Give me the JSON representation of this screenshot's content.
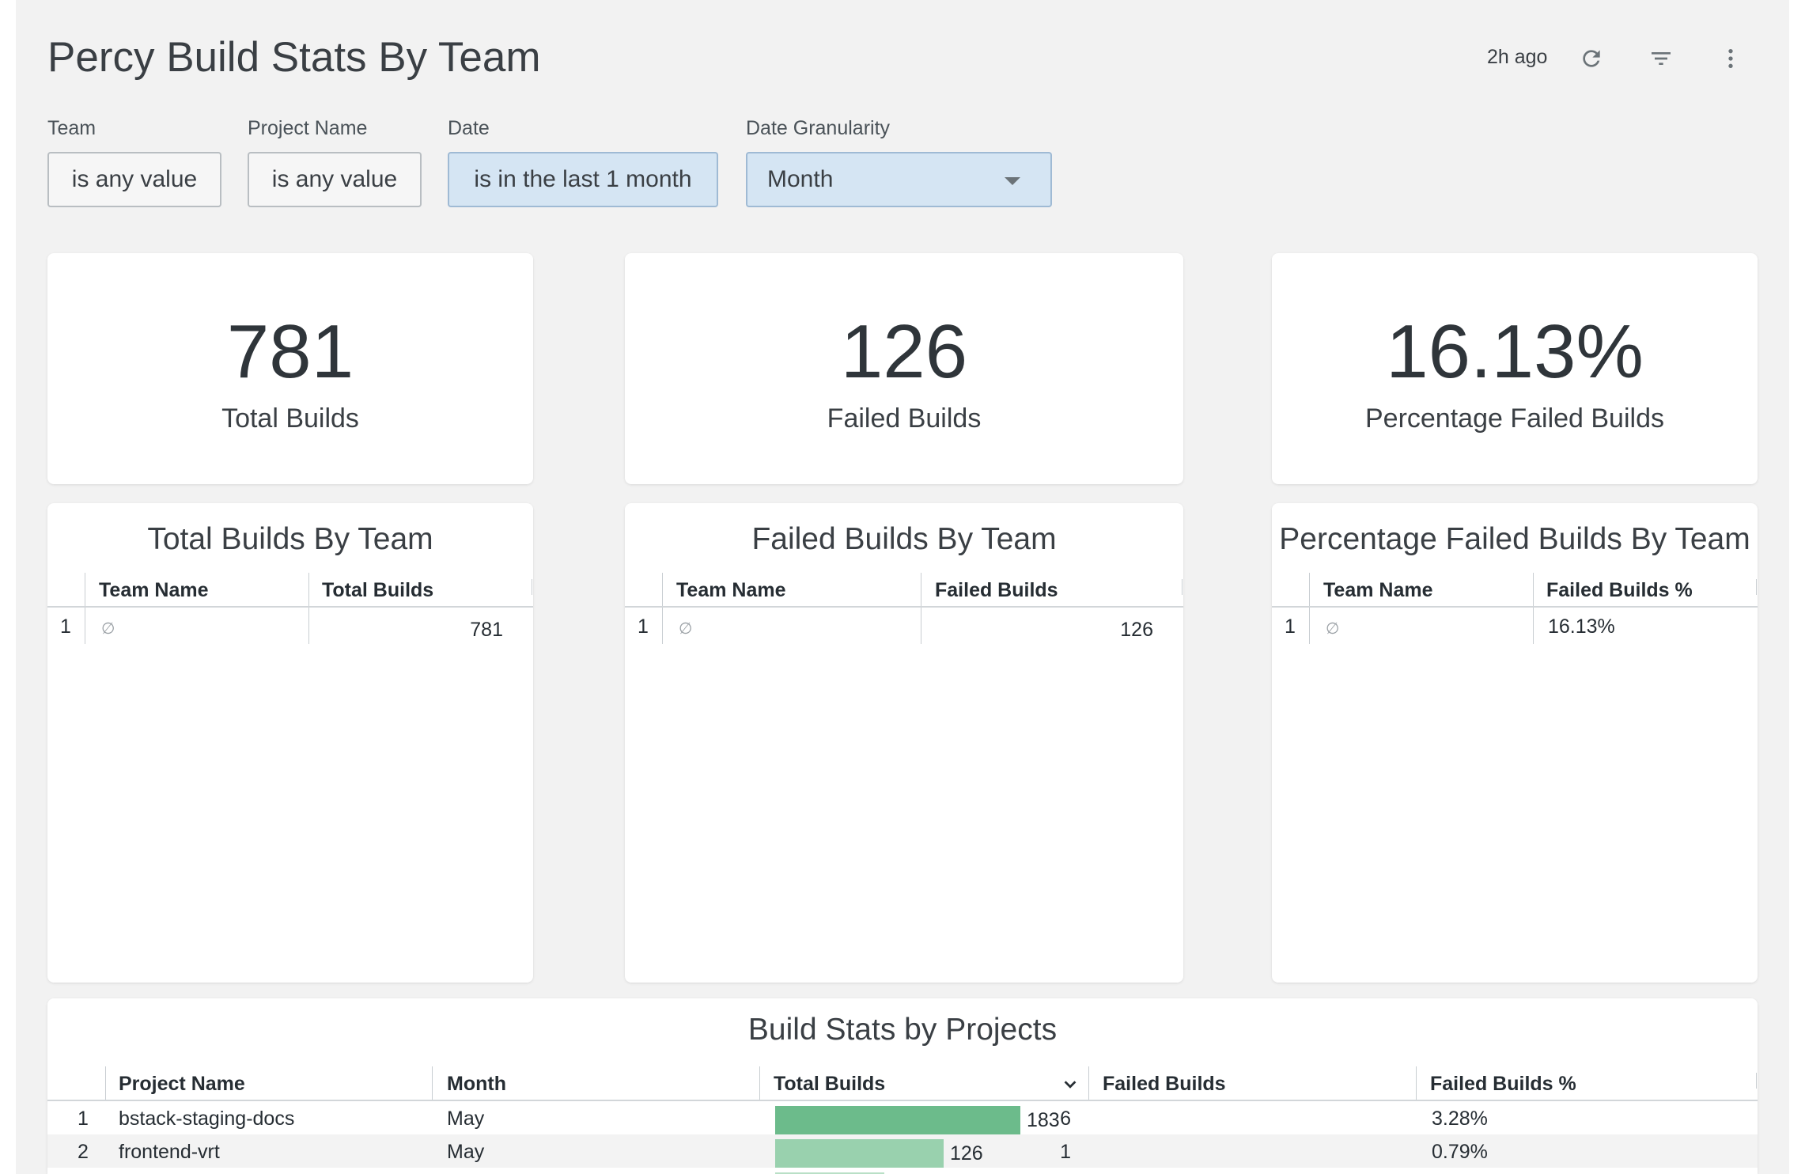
{
  "dashboard": {
    "title": "Percy Build Stats By Team",
    "updated": "2h ago",
    "icons": {
      "refresh": "refresh-icon",
      "filter": "filter-icon",
      "menu": "more-vertical-icon"
    }
  },
  "filters": [
    {
      "label": "Team",
      "value": "is any value"
    },
    {
      "label": "Project Name",
      "value": "is any value"
    },
    {
      "label": "Date",
      "value": "is in the last 1 month"
    },
    {
      "label": "Date Granularity",
      "value": "Month"
    }
  ],
  "kpis": [
    {
      "value": "781",
      "label": "Total Builds"
    },
    {
      "value": "126",
      "label": "Failed Builds"
    },
    {
      "value": "16.13%",
      "label": "Percentage Failed Builds"
    }
  ],
  "team_tables": [
    {
      "title": "Total Builds By Team",
      "columns": [
        "Team Name",
        "Total Builds"
      ],
      "rows": [
        {
          "index": "1",
          "team": "∅",
          "value": "781"
        }
      ]
    },
    {
      "title": "Failed Builds By Team",
      "columns": [
        "Team Name",
        "Failed Builds"
      ],
      "rows": [
        {
          "index": "1",
          "team": "∅",
          "value": "126"
        }
      ]
    },
    {
      "title": "Percentage Failed Builds By Team",
      "columns": [
        "Team Name",
        "Failed Builds %"
      ],
      "rows": [
        {
          "index": "1",
          "team": "∅",
          "value": "16.13%"
        }
      ]
    }
  ],
  "projects": {
    "title": "Build Stats by Projects",
    "columns": [
      "Project Name",
      "Month",
      "Total Builds",
      "Failed Builds",
      "Failed Builds %"
    ],
    "sort_icon": "chevron-down-icon",
    "bar_max": 183,
    "rows": [
      {
        "index": "1",
        "project": "bstack-staging-docs",
        "month": "May",
        "total": 183,
        "total_label": "183",
        "failed": "6",
        "pct": "3.28%"
      },
      {
        "index": "2",
        "project": "frontend-vrt",
        "month": "May",
        "total": 126,
        "total_label": "126",
        "failed": "1",
        "pct": "0.79%"
      }
    ],
    "bar_colors": [
      "#6cbb8b",
      "#99d1ae"
    ]
  }
}
